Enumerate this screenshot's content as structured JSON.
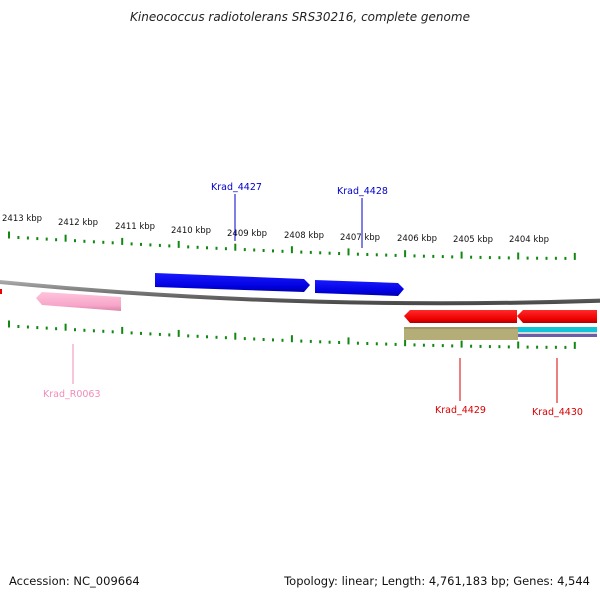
{
  "title": "Kineococcus radiotolerans SRS30216, complete genome",
  "footer": {
    "accession_label": "Accession:",
    "accession_value": "NC_009664",
    "topology_label": "Topology:",
    "topology_value": "linear",
    "length_label": "Length:",
    "length_value": "4,761,183 bp",
    "genes_label": "Genes:",
    "genes_value": "4,544"
  },
  "scale": {
    "ticks": [
      {
        "label": "2413 kbp"
      },
      {
        "label": "2412 kbp"
      },
      {
        "label": "2411 kbp"
      },
      {
        "label": "2410 kbp"
      },
      {
        "label": "2409 kbp"
      },
      {
        "label": "2408 kbp"
      },
      {
        "label": "2407 kbp"
      },
      {
        "label": "2406 kbp"
      },
      {
        "label": "2405 kbp"
      },
      {
        "label": "2404 kbp"
      }
    ]
  },
  "genes": [
    {
      "name": "Krad_4427",
      "strand": "+",
      "color": "#0000e0",
      "label_color": "#0000c8"
    },
    {
      "name": "Krad_4428",
      "strand": "+",
      "color": "#0000e0",
      "label_color": "#0000c8"
    },
    {
      "name": "Krad_R0063",
      "strand": "-",
      "color": "#f7a6c9",
      "label_color": "#f08cb8"
    },
    {
      "name": "Krad_4429",
      "strand": "-",
      "color": "#f00000",
      "label_color": "#d80000"
    },
    {
      "name": "Krad_4430",
      "strand": "-",
      "color": "#f00000",
      "label_color": "#d80000"
    }
  ],
  "colors": {
    "genome_line": "#808080",
    "tick_marks": "#118811",
    "gene_product_1": "#b5ad78",
    "gene_product_2": "#11c4d8",
    "gene_product_3": "#6a5ea8"
  }
}
